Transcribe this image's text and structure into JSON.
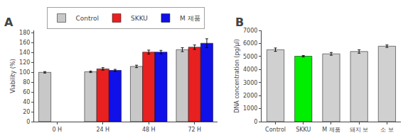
{
  "chart_data": [
    {
      "type": "bar",
      "title": "A",
      "categories": [
        "0 H",
        "24 H",
        "48 H",
        "72 H"
      ],
      "series": [
        {
          "name": "Control",
          "color": "#c8c8c8",
          "values": [
            100,
            101,
            112,
            146
          ],
          "errors": [
            1.5,
            1.5,
            2.5,
            4.0
          ]
        },
        {
          "name": "SKKU",
          "color": "#e82020",
          "values": [
            null,
            107,
            141,
            151
          ],
          "errors": [
            null,
            2.5,
            4.0,
            4.5
          ]
        },
        {
          "name": "M 제품",
          "color": "#1010e8",
          "values": [
            null,
            104,
            141,
            159
          ],
          "errors": [
            null,
            2.0,
            3.5,
            9.0
          ]
        }
      ],
      "ylabel": "Viability (%)",
      "ylim": [
        0,
        185
      ],
      "yticks": [
        0,
        20,
        40,
        60,
        80,
        100,
        120,
        140,
        160,
        180
      ],
      "grid": false,
      "legend": "top"
    },
    {
      "type": "bar",
      "title": "B",
      "categories": [
        "Control",
        "SKKU",
        "M 제품",
        "돼지 보",
        "소 보"
      ],
      "values": [
        5520,
        5020,
        5200,
        5380,
        5790
      ],
      "errors": [
        130,
        55,
        105,
        130,
        95
      ],
      "colors": [
        "#d0d0d0",
        "#00ee00",
        "#d0d0d0",
        "#d0d0d0",
        "#d0d0d0"
      ],
      "ylabel": "DNA concentration (pg/μl)",
      "ylim": [
        0,
        7000
      ],
      "yticks": [
        0,
        1000,
        2000,
        3000,
        4000,
        5000,
        6000,
        7000
      ],
      "grid": false
    }
  ]
}
